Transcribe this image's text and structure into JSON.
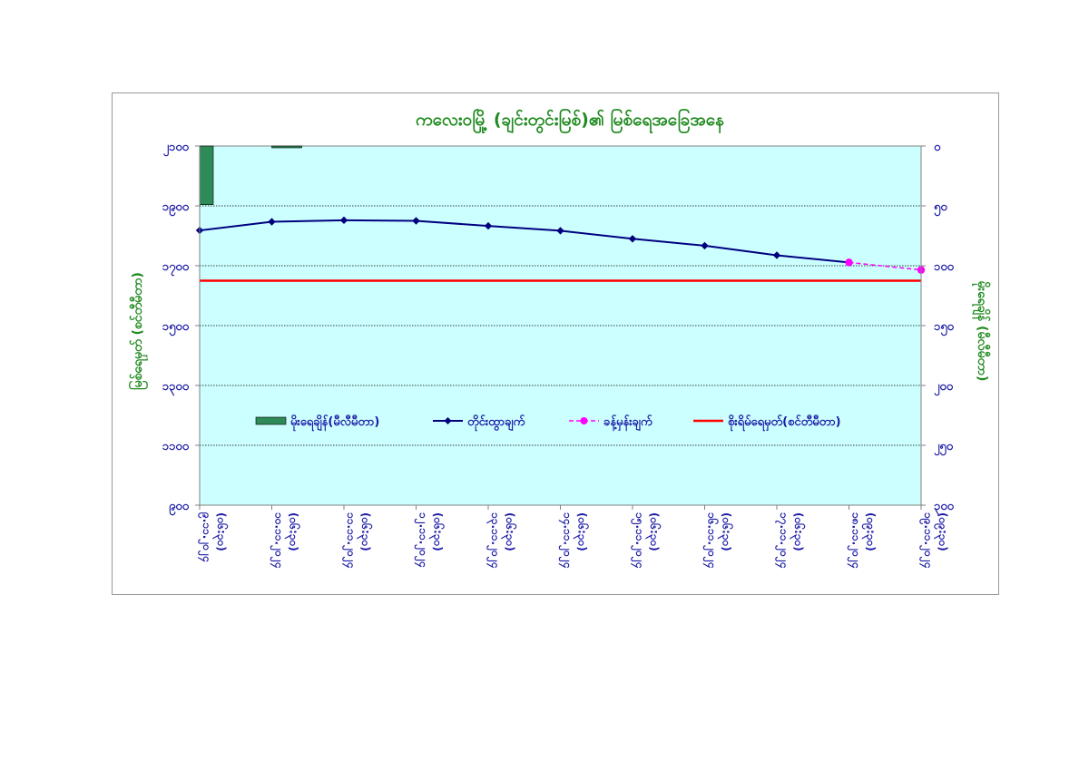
{
  "chart_data": {
    "type": "line",
    "title": "ကလေးဝမြို့ (ချင်းတွင်းမြစ်)၏ မြစ်ရေအခြေအနေ",
    "ylabel": "မြစ်ရေမှတ် (စင်တီမီတာ)",
    "y2label": "မိုးရေချိန် (မီလီမီတာ)",
    "ylim": [
      900,
      2100
    ],
    "yticks": [
      900,
      1100,
      1300,
      1500,
      1700,
      1900,
      2100
    ],
    "ytick_labels": [
      "၉၀၀",
      "၁၁၀၀",
      "၁၃၀၀",
      "၁၅၀၀",
      "၁၇၀၀",
      "၁၉၀၀",
      "၂၁၀၀"
    ],
    "y2lim": [
      0,
      300
    ],
    "y2_reversed": true,
    "y2ticks": [
      0,
      50,
      100,
      150,
      200,
      250,
      300
    ],
    "y2tick_labels": [
      "၀",
      "၅၀",
      "၁၀၀",
      "၁၅၀",
      "၂၀၀",
      "၂၅၀",
      "၃၀၀"
    ],
    "grid": true,
    "categories": [
      "၉.၁၁.၂၀၂၄ (၀၆:၃၀)",
      "၁၀.၁၁.၂၀၂၄ (၀၆:၃၀)",
      "၁၁.၁၁.၂၀၂၄ (၀၆:၃၀)",
      "၁၂.၁၁.၂၀၂၄ (၀၆:၃၀)",
      "၁၃.၁၁.၂၀၂၄ (၀၆:၃၀)",
      "၁၄.၁၁.၂၀၂၄ (၀၆:၃၀)",
      "၁၅.၁၁.၂၀၂၄ (၀၆:၃၀)",
      "၁၆.၁၁.၂၀၂၄ (၀၆:၃၀)",
      "၁၇.၁၁.၂၀၂၄ (၀၆:၃၀)",
      "၁၈.၁၁.၂၀၂၄ (၀၉:၃၀)",
      "၁၉.၁၁.၂၀၂၄ (၀၉:၃၀)"
    ],
    "series": [
      {
        "name": "မိုးရေချိန်(မီလီမီတာ)",
        "type": "bar",
        "axis": "y2",
        "color": "#2e8b57",
        "values": [
          49,
          1.5,
          0,
          0,
          0,
          0,
          0,
          0,
          0,
          0,
          null
        ]
      },
      {
        "name": "တိုင်းထွာချက်",
        "type": "line",
        "axis": "y",
        "color": "#00007f",
        "marker": "diamond",
        "values": [
          1818,
          1847,
          1852,
          1850,
          1833,
          1817,
          1790,
          1767,
          1735,
          1711,
          null
        ]
      },
      {
        "name": "ခန့်မှန်းချက်",
        "type": "line",
        "axis": "y",
        "color": "#ff00ff",
        "marker": "circle",
        "dashed": true,
        "values": [
          null,
          null,
          null,
          null,
          null,
          null,
          null,
          null,
          null,
          1711,
          1686
        ]
      },
      {
        "name": "စိုးရိမ်ရေမှတ်(စင်တီမီတာ)",
        "type": "hline",
        "axis": "y",
        "color": "#ff0000",
        "value": 1650
      }
    ],
    "legend_position": "center"
  }
}
